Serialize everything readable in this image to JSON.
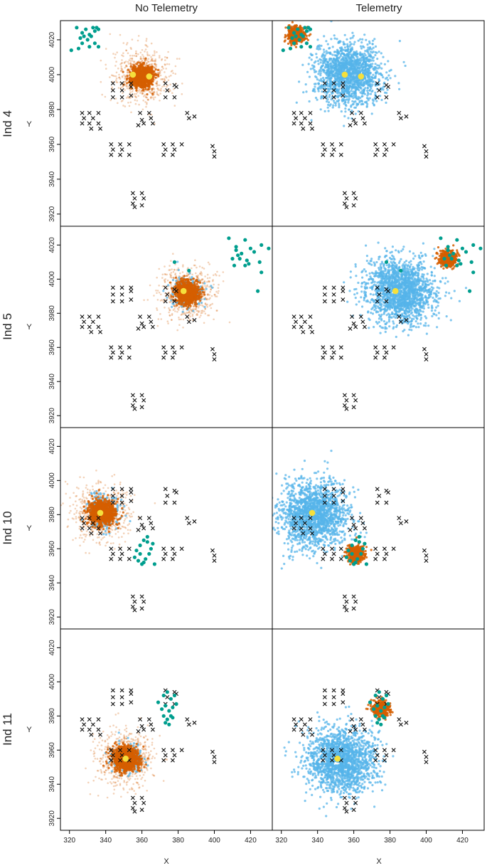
{
  "figure": {
    "column_titles": [
      "No Telemetry",
      "Telemetry"
    ],
    "row_titles": [
      "Ind 4",
      "Ind 5",
      "Ind 10",
      "Ind 11"
    ],
    "xlabel": "X",
    "ylabel": "Y"
  },
  "colors": {
    "posterior_orange": "#D55E00",
    "posterior_blue": "#56B4E9",
    "telemetry_teal": "#009E8E",
    "activity_center": "#F5E03C",
    "trap": "#111111",
    "frame": "#000000"
  },
  "chart_data": {
    "type": "scatter",
    "layout": "faceted 4 rows x 2 columns",
    "xlim": [
      315,
      432
    ],
    "ylim": [
      3913,
      4031
    ],
    "x_ticks": [
      320,
      340,
      360,
      380,
      400,
      420
    ],
    "y_ticks": [
      3920,
      3940,
      3960,
      3980,
      4000,
      4020
    ],
    "grid": false,
    "traps": [
      [
        327,
        3978
      ],
      [
        331,
        3978
      ],
      [
        336,
        3978
      ],
      [
        328,
        3975
      ],
      [
        333,
        3975
      ],
      [
        327,
        3972
      ],
      [
        331,
        3972
      ],
      [
        336,
        3972
      ],
      [
        332,
        3969
      ],
      [
        337,
        3969
      ],
      [
        344,
        3995
      ],
      [
        349,
        3995
      ],
      [
        354,
        3995
      ],
      [
        344,
        3991
      ],
      [
        349,
        3991
      ],
      [
        354,
        3993
      ],
      [
        344,
        3987
      ],
      [
        349,
        3987
      ],
      [
        354,
        3988
      ],
      [
        359,
        3978
      ],
      [
        364,
        3978
      ],
      [
        360,
        3974
      ],
      [
        365,
        3975
      ],
      [
        361,
        3972
      ],
      [
        366,
        3972
      ],
      [
        358,
        3971
      ],
      [
        373,
        3995
      ],
      [
        378,
        3994
      ],
      [
        374,
        3991
      ],
      [
        379,
        3993
      ],
      [
        373,
        3987
      ],
      [
        378,
        3987
      ],
      [
        385,
        3978
      ],
      [
        386,
        3975
      ],
      [
        389,
        3976
      ],
      [
        343,
        3960
      ],
      [
        348,
        3960
      ],
      [
        353,
        3960
      ],
      [
        344,
        3957
      ],
      [
        349,
        3957
      ],
      [
        343,
        3954
      ],
      [
        348,
        3954
      ],
      [
        353,
        3954
      ],
      [
        372,
        3960
      ],
      [
        377,
        3960
      ],
      [
        382,
        3960
      ],
      [
        373,
        3957
      ],
      [
        378,
        3957
      ],
      [
        372,
        3954
      ],
      [
        377,
        3954
      ],
      [
        399,
        3959
      ],
      [
        400,
        3956
      ],
      [
        400,
        3953
      ],
      [
        355,
        3932
      ],
      [
        360,
        3932
      ],
      [
        356,
        3929
      ],
      [
        361,
        3929
      ],
      [
        355,
        3926
      ],
      [
        360,
        3925
      ],
      [
        356,
        3924
      ]
    ],
    "individuals": [
      {
        "row_title": "Ind 4",
        "telemetry_fixes": [
          [
            324,
            4027
          ],
          [
            327,
            4024
          ],
          [
            329,
            4026
          ],
          [
            331,
            4023
          ],
          [
            333,
            4027
          ],
          [
            334,
            4025
          ],
          [
            335,
            4027
          ],
          [
            336,
            4026
          ],
          [
            326,
            4021
          ],
          [
            328,
            4022
          ],
          [
            332,
            4022
          ],
          [
            330,
            4020
          ],
          [
            334,
            4018
          ],
          [
            336,
            4016
          ],
          [
            327,
            4018
          ],
          [
            321,
            4014
          ],
          [
            325,
            4015
          ],
          [
            331,
            4016
          ]
        ],
        "panels": [
          {
            "column_title": "No Telemetry",
            "activity_centers": [
              [
                355,
                4000
              ],
              [
                364,
                3999
              ]
            ],
            "clouds": [
              {
                "color": "orange",
                "center": [
                  360,
                  3999
                ],
                "sd": 3.0,
                "count": 900
              },
              {
                "color": "orange",
                "center": [
                  360,
                  3999
                ],
                "sd": 7.5,
                "count": 650
              }
            ]
          },
          {
            "column_title": "Telemetry",
            "activity_centers": [
              [
                355,
                4000
              ],
              [
                364,
                3999
              ]
            ],
            "clouds": [
              {
                "color": "blue",
                "center": [
                  357,
                  4001
                ],
                "sd": 9.0,
                "count": 1600
              },
              {
                "color": "orange",
                "center": [
                  328,
                  4023
                ],
                "sd": 2.2,
                "count": 500
              }
            ]
          }
        ]
      },
      {
        "row_title": "Ind 5",
        "telemetry_fixes": [
          [
            378,
            4010
          ],
          [
            386,
            4005
          ],
          [
            408,
            4024
          ],
          [
            417,
            4023
          ],
          [
            420,
            4018
          ],
          [
            422,
            4016
          ],
          [
            426,
            4020
          ],
          [
            430,
            4018
          ],
          [
            412,
            4019
          ],
          [
            413,
            4014
          ],
          [
            414,
            4012
          ],
          [
            411,
            4008
          ],
          [
            417,
            4008
          ],
          [
            419,
            4009
          ],
          [
            415,
            4015
          ],
          [
            425,
            4010
          ],
          [
            426,
            4004
          ],
          [
            424,
            3993
          ],
          [
            410,
            4012
          ],
          [
            418,
            4011
          ],
          [
            412,
            4017
          ]
        ],
        "panels": [
          {
            "column_title": "No Telemetry",
            "activity_centers": [
              [
                383,
                3993
              ]
            ],
            "clouds": [
              {
                "color": "blue",
                "center": [
                  385,
                  3992
                ],
                "sd": 4.5,
                "count": 250
              },
              {
                "color": "orange",
                "center": [
                  385,
                  3992
                ],
                "sd": 3.2,
                "count": 900
              },
              {
                "color": "orange",
                "center": [
                  385,
                  3992
                ],
                "sd": 7.5,
                "count": 650
              }
            ]
          },
          {
            "column_title": "Telemetry",
            "activity_centers": [
              [
                383,
                3993
              ]
            ],
            "clouds": [
              {
                "color": "blue",
                "center": [
                  386,
                  3993
                ],
                "sd": 9.5,
                "count": 1700
              },
              {
                "color": "orange",
                "center": [
                  412,
                  4012
                ],
                "sd": 2.2,
                "count": 500
              }
            ]
          }
        ]
      },
      {
        "row_title": "Ind 10",
        "telemetry_fixes": [
          [
            357,
            3959
          ],
          [
            359,
            3962
          ],
          [
            361,
            3965
          ],
          [
            363,
            3967
          ],
          [
            356,
            3955
          ],
          [
            358,
            3953
          ],
          [
            360,
            3951
          ],
          [
            362,
            3954
          ],
          [
            364,
            3957
          ],
          [
            365,
            3960
          ],
          [
            366,
            3963
          ],
          [
            359,
            3957
          ],
          [
            361,
            3952
          ],
          [
            367,
            3951
          ],
          [
            363,
            3964
          ]
        ],
        "panels": [
          {
            "column_title": "No Telemetry",
            "activity_centers": [
              [
                337,
                3981
              ]
            ],
            "clouds": [
              {
                "color": "blue",
                "center": [
                  339,
                  3982
                ],
                "sd": 4.5,
                "count": 250
              },
              {
                "color": "orange",
                "center": [
                  338,
                  3981
                ],
                "sd": 3.5,
                "count": 900
              },
              {
                "color": "orange",
                "center": [
                  338,
                  3981
                ],
                "sd": 8.0,
                "count": 650
              }
            ]
          },
          {
            "column_title": "Telemetry",
            "activity_centers": [
              [
                337,
                3981
              ]
            ],
            "clouds": [
              {
                "color": "blue",
                "center": [
                  338,
                  3980
                ],
                "sd": 9.5,
                "count": 1700
              },
              {
                "color": "orange",
                "center": [
                  361,
                  3957
                ],
                "sd": 2.2,
                "count": 500
              }
            ]
          }
        ]
      },
      {
        "row_title": "Ind 11",
        "telemetry_fixes": [
          [
            369,
            3988
          ],
          [
            372,
            3992
          ],
          [
            374,
            3994
          ],
          [
            376,
            3990
          ],
          [
            378,
            3992
          ],
          [
            371,
            3984
          ],
          [
            373,
            3986
          ],
          [
            375,
            3983
          ],
          [
            377,
            3985
          ],
          [
            379,
            3987
          ],
          [
            372,
            3980
          ],
          [
            374,
            3978
          ],
          [
            376,
            3980
          ],
          [
            373,
            3976
          ],
          [
            375,
            3975
          ],
          [
            377,
            3979
          ]
        ],
        "panels": [
          {
            "column_title": "No Telemetry",
            "activity_centers": [
              [
                351,
                3955
              ]
            ],
            "clouds": [
              {
                "color": "blue",
                "center": [
                  351,
                  3955
                ],
                "sd": 4.5,
                "count": 250
              },
              {
                "color": "orange",
                "center": [
                  351,
                  3955
                ],
                "sd": 3.5,
                "count": 900
              },
              {
                "color": "orange",
                "center": [
                  351,
                  3955
                ],
                "sd": 8.0,
                "count": 650
              }
            ]
          },
          {
            "column_title": "Telemetry",
            "activity_centers": [
              [
                351,
                3955
              ]
            ],
            "clouds": [
              {
                "color": "blue",
                "center": [
                  353,
                  3954
                ],
                "sd": 9.5,
                "count": 1700
              },
              {
                "color": "orange",
                "center": [
                  375,
                  3984
                ],
                "sd": 2.2,
                "count": 500
              }
            ]
          }
        ]
      }
    ]
  }
}
